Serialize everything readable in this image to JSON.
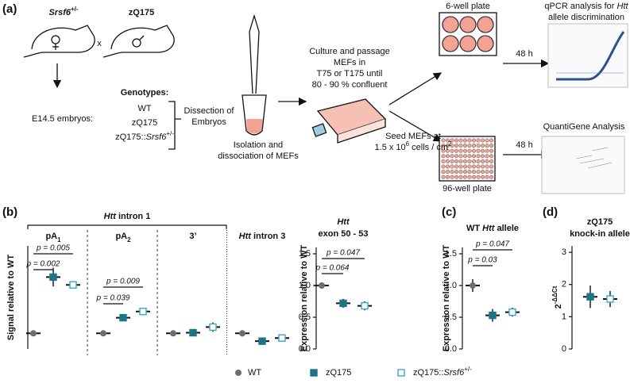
{
  "panel_labels": [
    "(a)",
    "(b)",
    "(c)",
    "(d)"
  ],
  "diagram": {
    "parent1": [
      "Srsf6",
      "+/-"
    ],
    "parent2": "zQ175",
    "cross": "x",
    "embryos": "E14.5 embryos:",
    "genotypes_title": "Genotypes:",
    "genotypes": [
      "WT",
      "zQ175",
      [
        "zQ175::",
        "Srsf6",
        "+/-"
      ]
    ],
    "dissection": [
      "Dissection of",
      "Embryos"
    ],
    "isolation": [
      "Isolation and",
      "dissociation of MEFs"
    ],
    "culture": [
      "Culture and passage",
      "MEFs in",
      "T75 or T175 until",
      "80 - 90 % confluent"
    ],
    "seed": [
      "Seed MEFs at",
      [
        "1.5 x 10",
        "6",
        " cells / cm",
        "2"
      ]
    ],
    "plates": [
      "6-well plate",
      "96-well plate"
    ],
    "incubation": [
      "48 h",
      "48 h"
    ],
    "qpcr": [
      [
        "qPCR analysis for ",
        "Htt"
      ],
      "allele discrimination"
    ],
    "quantigene": "QuantiGene Analysis"
  },
  "legend": [
    {
      "name": "WT",
      "color": "#6e6e6e",
      "marker": "circle"
    },
    {
      "name": "zQ175",
      "color": "#1b7585",
      "marker": "square"
    },
    {
      "name": [
        "zQ175::",
        "Srsf6",
        "+/-"
      ],
      "color": "#3aa9c9",
      "marker": "open-square"
    }
  ],
  "chart_data": [
    {
      "type": "dot",
      "group_header": [
        "Htt",
        " intron 1"
      ],
      "ylabel": "Signal relative to WT",
      "categories": [
        [
          "pA",
          "1"
        ],
        [
          "pA",
          "2"
        ],
        "3’",
        [
          "Htt",
          " intron 3"
        ]
      ],
      "ylim": [
        0.5,
        3.8
      ],
      "series": [
        {
          "values": [
            1.0,
            1.0,
            1.0,
            1.0
          ],
          "errors": [
            0.03,
            0.02,
            0.05,
            0.1
          ]
        },
        {
          "values": [
            2.8,
            1.5,
            1.02,
            0.75
          ],
          "errors": [
            0.3,
            0.1,
            0.08,
            0.03
          ]
        },
        {
          "values": [
            2.55,
            1.7,
            1.2,
            0.85
          ],
          "errors": [
            0.05,
            0.12,
            0.15,
            0.05
          ]
        }
      ],
      "annotations": [
        "p = 0.002",
        "p = 0.005",
        "p = 0.039",
        "p = 0.009"
      ]
    },
    {
      "type": "dot",
      "title": [
        "Htt",
        "exon 50 - 53"
      ],
      "ylabel": "Expression relative to WT",
      "ylim": [
        0,
        1.6
      ],
      "yticks": [
        {
          "value": 0,
          "label": "0.0"
        },
        {
          "value": 0.5,
          "label": "0.5"
        },
        {
          "value": 1,
          "label": "1.0"
        },
        {
          "value": 1.5,
          "label": "1.5"
        }
      ],
      "series": [
        {
          "values": [
            1.0
          ],
          "errors": [
            0.05
          ]
        },
        {
          "values": [
            0.72
          ],
          "errors": [
            0.07
          ]
        },
        {
          "values": [
            0.68
          ],
          "errors": [
            0.07
          ]
        }
      ],
      "annotations": [
        "p = 0.064",
        "p = 0.047"
      ]
    },
    {
      "type": "dot",
      "title": [
        "WT ",
        "Htt",
        " allele"
      ],
      "ylabel": "Expression relative to WT",
      "ylim": [
        0,
        1.6
      ],
      "yticks": [
        {
          "value": 0,
          "label": "0.0"
        },
        {
          "value": 0.5,
          "label": "0.5"
        },
        {
          "value": 1,
          "label": "1.0"
        },
        {
          "value": 1.5,
          "label": "1.5"
        }
      ],
      "series": [
        {
          "values": [
            1.0
          ],
          "errors": [
            0.1
          ]
        },
        {
          "values": [
            0.53
          ],
          "errors": [
            0.1
          ]
        },
        {
          "values": [
            0.58
          ],
          "errors": [
            0.07
          ]
        }
      ],
      "annotations": [
        "p = 0.03",
        "p = 0.047"
      ]
    },
    {
      "type": "dot",
      "title": [
        "zQ175",
        "knock-in allele"
      ],
      "ylabel": [
        "2",
        "-ΔΔCt"
      ],
      "ylim": [
        0,
        3.2
      ],
      "yticks": [
        0,
        1,
        2,
        3
      ],
      "series": [
        {
          "values": [
            null
          ],
          "errors": [
            null
          ]
        },
        {
          "values": [
            1.62
          ],
          "errors": [
            0.35
          ]
        },
        {
          "values": [
            1.55
          ],
          "errors": [
            0.25
          ]
        }
      ]
    }
  ]
}
